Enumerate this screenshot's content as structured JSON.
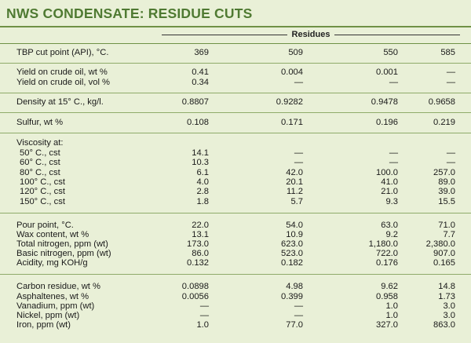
{
  "title": "NWS CONDENSATE: RESIDUE CUTS",
  "column_group": "Residues",
  "rows": [
    {
      "label": "TBP cut point (API), °C.",
      "values": [
        "369",
        "509",
        "550",
        "585"
      ]
    },
    {
      "label": "Yield on crude oil, wt %",
      "values": [
        "0.41",
        "0.004",
        "0.001",
        "—"
      ]
    },
    {
      "label": "Yield on crude oil, vol %",
      "values": [
        "0.34",
        "—",
        "—",
        "—"
      ]
    },
    {
      "label": "Density at 15° C., kg/l.",
      "values": [
        "0.8807",
        "0.9282",
        "0.9478",
        "0.9658"
      ]
    },
    {
      "label": "Sulfur, wt %",
      "values": [
        "0.108",
        "0.171",
        "0.196",
        "0.219"
      ]
    },
    {
      "label": "Viscosity at:",
      "values": [
        "",
        "",
        "",
        ""
      ]
    },
    {
      "label": "50° C., cst",
      "values": [
        "14.1",
        "—",
        "—",
        "—"
      ]
    },
    {
      "label": "60° C., cst",
      "values": [
        "10.3",
        "—",
        "—",
        "—"
      ]
    },
    {
      "label": "80° C., cst",
      "values": [
        "6.1",
        "42.0",
        "100.0",
        "257.0"
      ]
    },
    {
      "label": "100° C., cst",
      "values": [
        "4.0",
        "20.1",
        "41.0",
        "89.0"
      ]
    },
    {
      "label": "120° C., cst",
      "values": [
        "2.8",
        "11.2",
        "21.0",
        "39.0"
      ]
    },
    {
      "label": "150° C., cst",
      "values": [
        "1.8",
        "5.7",
        "9.3",
        "15.5"
      ]
    },
    {
      "label": "Pour point, °C.",
      "values": [
        "22.0",
        "54.0",
        "63.0",
        "71.0"
      ]
    },
    {
      "label": "Wax content, wt %",
      "values": [
        "13.1",
        "10.9",
        "9.2",
        "7.7"
      ]
    },
    {
      "label": "Total nitrogen, ppm (wt)",
      "values": [
        "173.0",
        "623.0",
        "1,180.0",
        "2,380.0"
      ]
    },
    {
      "label": "Basic nitrogen, ppm (wt)",
      "values": [
        "86.0",
        "523.0",
        "722.0",
        "907.0"
      ]
    },
    {
      "label": "Acidity, mg KOH/g",
      "values": [
        "0.132",
        "0.182",
        "0.176",
        "0.165"
      ]
    },
    {
      "label": "Carbon residue, wt %",
      "values": [
        "0.0898",
        "4.98",
        "9.62",
        "14.8"
      ]
    },
    {
      "label": "Asphaltenes, wt %",
      "values": [
        "0.0056",
        "0.399",
        "0.958",
        "1.73"
      ]
    },
    {
      "label": "Vanadium, ppm (wt)",
      "values": [
        "—",
        "—",
        "1.0",
        "3.0"
      ]
    },
    {
      "label": "Nickel, ppm (wt)",
      "values": [
        "—",
        "—",
        "1.0",
        "3.0"
      ]
    },
    {
      "label": "Iron, ppm (wt)",
      "values": [
        "1.0",
        "77.0",
        "327.0",
        "863.0"
      ]
    }
  ]
}
